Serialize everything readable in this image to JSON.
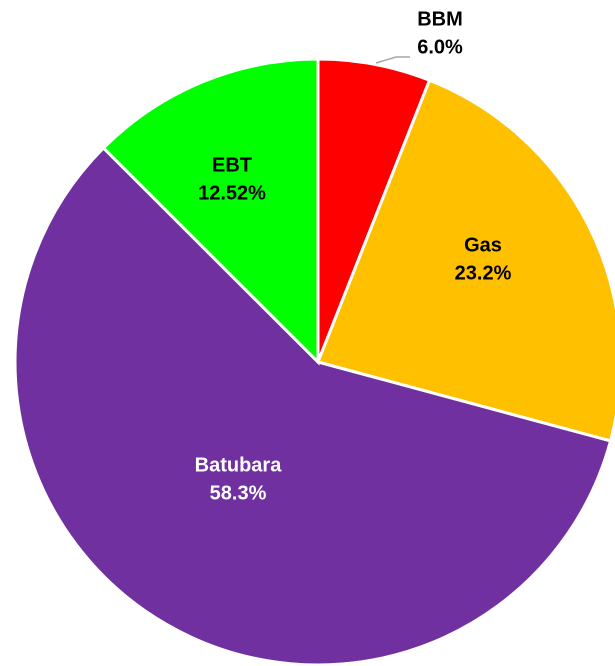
{
  "chart_data": {
    "type": "pie",
    "categories": [
      "BBM",
      "Gas",
      "Batubara",
      "EBT"
    ],
    "values": [
      6.0,
      23.2,
      58.3,
      12.52
    ],
    "value_labels": [
      "6.0%",
      "23.2%",
      "58.3%",
      "12.52%"
    ],
    "colors": [
      "#ff0000",
      "#ffc000",
      "#7030a0",
      "#00ff00"
    ],
    "start": "top",
    "direction": "clockwise"
  }
}
